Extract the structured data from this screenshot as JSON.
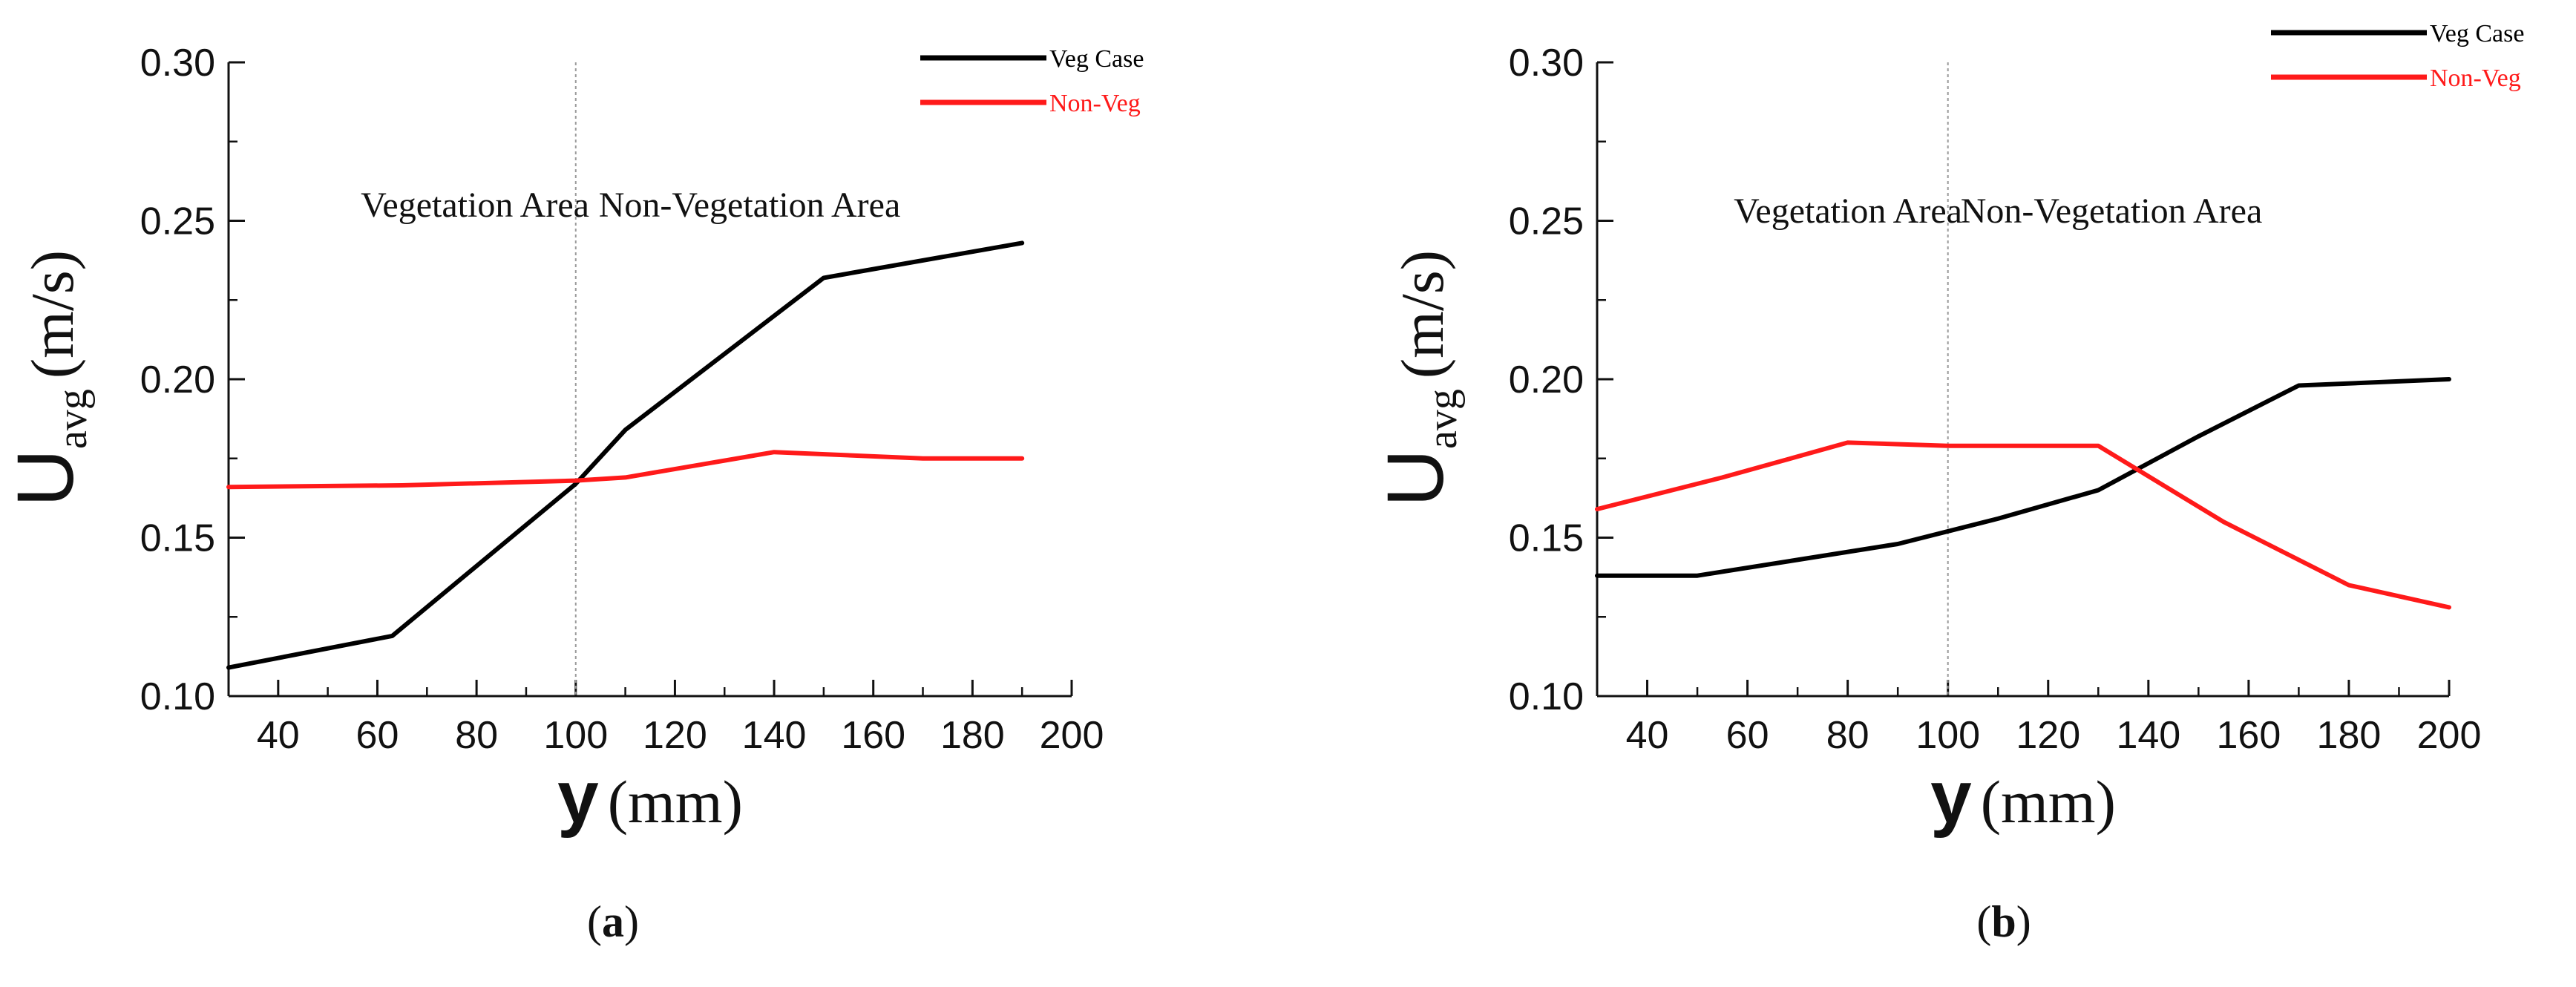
{
  "chart_data": [
    {
      "type": "line",
      "panel": "a",
      "caption": {
        "open": "(",
        "letter": "a",
        "close": ")"
      },
      "ylabel": {
        "main": "U",
        "sub": "avg",
        "unit": "(m/s)"
      },
      "xlabel": {
        "main": "y",
        "unit": "(mm)"
      },
      "xlim": [
        30,
        200
      ],
      "ylim": [
        0.1,
        0.3
      ],
      "xticks": [
        "40",
        "60",
        "80",
        "100",
        "120",
        "140",
        "160",
        "180",
        "200"
      ],
      "yticks": [
        "0.10",
        "0.15",
        "0.20",
        "0.25",
        "0.30"
      ],
      "divider_x": 100,
      "region_labels": {
        "left": "Vegetation Area",
        "right": "Non-Vegetation Area"
      },
      "series": [
        {
          "name": "Veg Case",
          "color": "#000000",
          "x": [
            30,
            63,
            100,
            110,
            150,
            190
          ],
          "y": [
            0.109,
            0.119,
            0.167,
            0.184,
            0.232,
            0.243
          ]
        },
        {
          "name": "Non-Veg",
          "color": "#ff1a1a",
          "x": [
            30,
            65,
            100,
            110,
            140,
            170,
            190
          ],
          "y": [
            0.166,
            0.1665,
            0.168,
            0.169,
            0.177,
            0.175,
            0.175
          ]
        }
      ],
      "legend": "top-right"
    },
    {
      "type": "line",
      "panel": "b",
      "caption": {
        "open": "(",
        "letter": "b",
        "close": ")"
      },
      "ylabel": {
        "main": "U",
        "sub": "avg",
        "unit": "(m/s)"
      },
      "xlabel": {
        "main": "y",
        "unit": "(mm)"
      },
      "xlim": [
        30,
        200
      ],
      "ylim": [
        0.1,
        0.3
      ],
      "xticks": [
        "40",
        "60",
        "80",
        "100",
        "120",
        "140",
        "160",
        "180",
        "200"
      ],
      "yticks": [
        "0.10",
        "0.15",
        "0.20",
        "0.25",
        "0.30"
      ],
      "divider_x": 100,
      "region_labels": {
        "left": "Vegetation Area",
        "right": "Non-Vegetation Area"
      },
      "series": [
        {
          "name": "Veg Case",
          "color": "#000000",
          "x": [
            30,
            50,
            70,
            90,
            110,
            130,
            150,
            170,
            200
          ],
          "y": [
            0.138,
            0.138,
            0.143,
            0.148,
            0.156,
            0.165,
            0.182,
            0.198,
            0.2
          ]
        },
        {
          "name": "Non-Veg",
          "color": "#ff1a1a",
          "x": [
            30,
            55,
            80,
            100,
            130,
            155,
            180,
            200
          ],
          "y": [
            0.159,
            0.169,
            0.18,
            0.179,
            0.179,
            0.155,
            0.135,
            0.128
          ]
        }
      ],
      "legend": "top-right"
    }
  ]
}
